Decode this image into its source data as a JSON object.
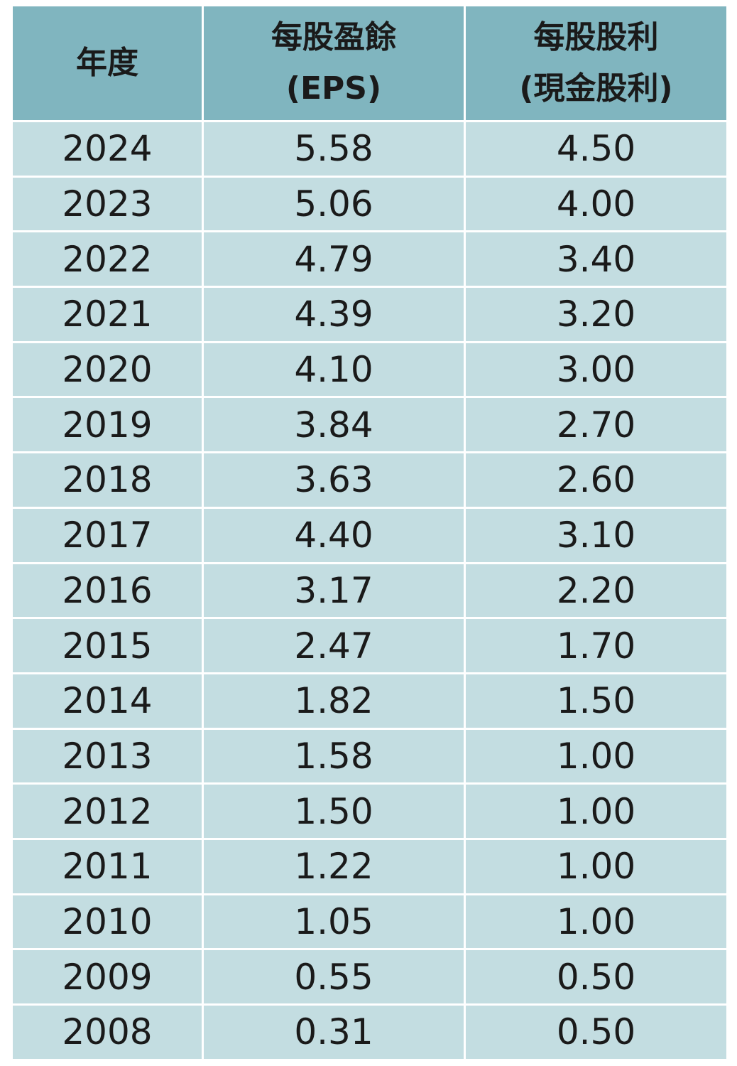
{
  "table": {
    "header": [
      [
        "年度"
      ],
      [
        "每股盈餘",
        "(EPS)"
      ],
      [
        "每股股利",
        "(現金股利)"
      ]
    ],
    "rows": [
      [
        "2024",
        "5.58",
        "4.50"
      ],
      [
        "2023",
        "5.06",
        "4.00"
      ],
      [
        "2022",
        "4.79",
        "3.40"
      ],
      [
        "2021",
        "4.39",
        "3.20"
      ],
      [
        "2020",
        "4.10",
        "3.00"
      ],
      [
        "2019",
        "3.84",
        "2.70"
      ],
      [
        "2018",
        "3.63",
        "2.60"
      ],
      [
        "2017",
        "4.40",
        "3.10"
      ],
      [
        "2016",
        "3.17",
        "2.20"
      ],
      [
        "2015",
        "2.47",
        "1.70"
      ],
      [
        "2014",
        "1.82",
        "1.50"
      ],
      [
        "2013",
        "1.58",
        "1.00"
      ],
      [
        "2012",
        "1.50",
        "1.00"
      ],
      [
        "2011",
        "1.22",
        "1.00"
      ],
      [
        "2010",
        "1.05",
        "1.00"
      ],
      [
        "2009",
        "0.55",
        "0.50"
      ],
      [
        "2008",
        "0.31",
        "0.50"
      ]
    ]
  }
}
